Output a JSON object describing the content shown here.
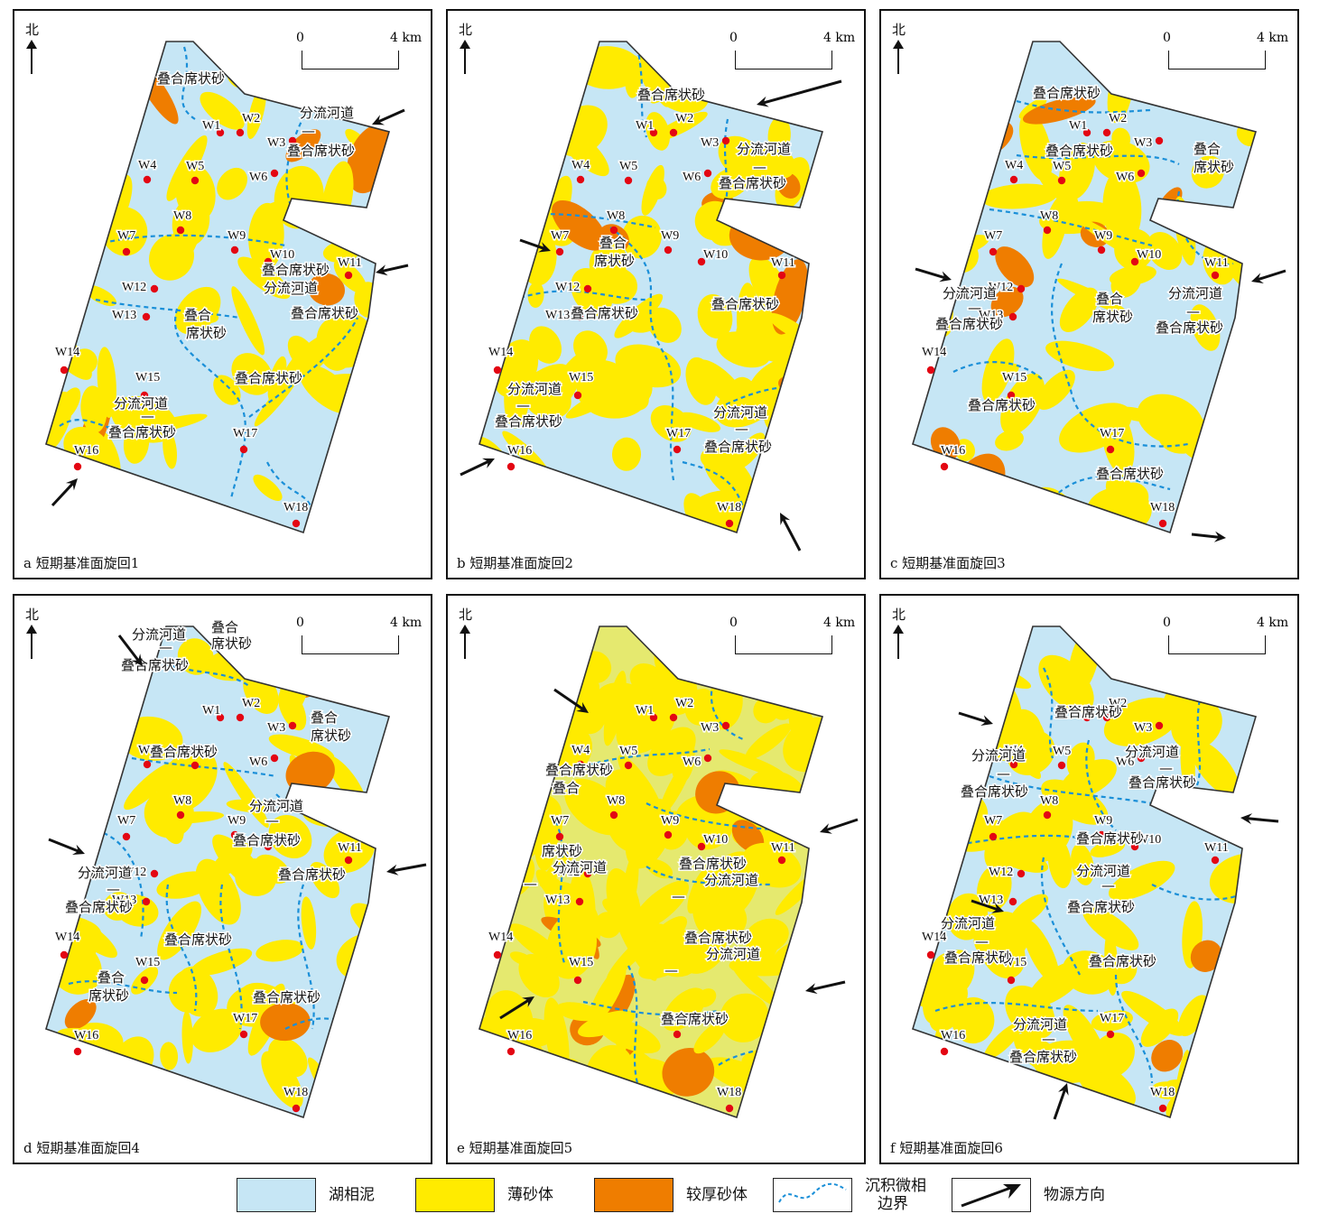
{
  "panels": [
    {
      "caption": "a 短期基准面旋回1",
      "north": "北",
      "scale": {
        "zero": "0",
        "max": "4 km"
      },
      "facies": [
        "叠合席状砂",
        "分流河道",
        "—",
        "叠合席状砂",
        "叠合席状砂",
        "分流河道",
        "—",
        "叠合席状砂",
        "叠合",
        "席状砂",
        "叠合席状砂",
        "分流河道",
        "—",
        "叠合席状砂"
      ]
    },
    {
      "caption": "b 短期基准面旋回2",
      "north": "北",
      "scale": {
        "zero": "0",
        "max": "4 km"
      },
      "facies": [
        "叠合席状砂",
        "分流河道",
        "—",
        "叠合席状砂",
        "叠合",
        "席状砂",
        "叠合席状砂",
        "叠合席状砂",
        "分流河道",
        "—",
        "叠合席状砂",
        "分流河道",
        "—",
        "叠合席状砂"
      ]
    },
    {
      "caption": "c 短期基准面旋回3",
      "north": "北",
      "scale": {
        "zero": "0",
        "max": "4 km"
      },
      "facies": [
        "叠合席状砂",
        "叠合席状砂",
        "叠合",
        "席状砂",
        "分流河道",
        "—",
        "叠合席状砂",
        "叠合",
        "席状砂",
        "分流河道",
        "—",
        "叠合席状砂",
        "叠合席状砂",
        "叠合席状砂"
      ]
    },
    {
      "caption": "d 短期基准面旋回4",
      "north": "北",
      "scale": {
        "zero": "0",
        "max": "4 km"
      },
      "facies": [
        "分流河道",
        "—",
        "叠合席状砂",
        "叠合",
        "席状砂",
        "叠合",
        "席状砂",
        "叠合席状砂",
        "分流河道",
        "—",
        "叠合席状砂",
        "叠合席状砂",
        "分流河道",
        "—",
        "叠合席状砂",
        "叠合席状砂",
        "叠合",
        "席状砂",
        "叠合席状砂"
      ]
    },
    {
      "caption": "e 短期基准面旋回5",
      "north": "北",
      "scale": {
        "zero": "0",
        "max": "4 km"
      },
      "facies": [
        "叠合席状砂",
        "叠合",
        "席状砂",
        "分流河道",
        "—",
        "叠合席状砂",
        "分流河道",
        "—",
        "叠合席状砂",
        "分流河道",
        "—",
        "叠合席状砂",
        "叠合席状砂"
      ]
    },
    {
      "caption": "f 短期基准面旋回6",
      "north": "北",
      "scale": {
        "zero": "0",
        "max": "4 km"
      },
      "facies": [
        "叠合席状砂",
        "分流河道",
        "—",
        "叠合席状砂",
        "分流河道",
        "—",
        "叠合席状砂",
        "叠合席状砂",
        "分流河道",
        "—",
        "叠合席状砂",
        "分流河道",
        "—",
        "叠合席状砂",
        "叠合席状砂",
        "分流河道",
        "—",
        "叠合席状砂"
      ]
    }
  ],
  "wells": [
    "W1",
    "W2",
    "W3",
    "W4",
    "W5",
    "W6",
    "W7",
    "W8",
    "W9",
    "W10",
    "W11",
    "W12",
    "W13",
    "W14",
    "W15",
    "W16",
    "W17",
    "W18"
  ],
  "legend": [
    {
      "label": "湖相泥",
      "color": "#c6e6f5",
      "kind": "swatch"
    },
    {
      "label": "薄砂体",
      "color": "#ffeb00",
      "kind": "swatch"
    },
    {
      "label": "较厚砂体",
      "color": "#ef7d00",
      "kind": "swatch"
    },
    {
      "label": "沉积微相",
      "label2": "边界",
      "color": "#1a8fd8",
      "kind": "line"
    },
    {
      "label": "物源方向",
      "color": "#111111",
      "kind": "arrow"
    }
  ],
  "colors": {
    "mud": "#c6e6f5",
    "thin": "#ffeb00",
    "thick": "#ef7d00",
    "boundary": "#1a8fd8",
    "well": "#e30613"
  }
}
